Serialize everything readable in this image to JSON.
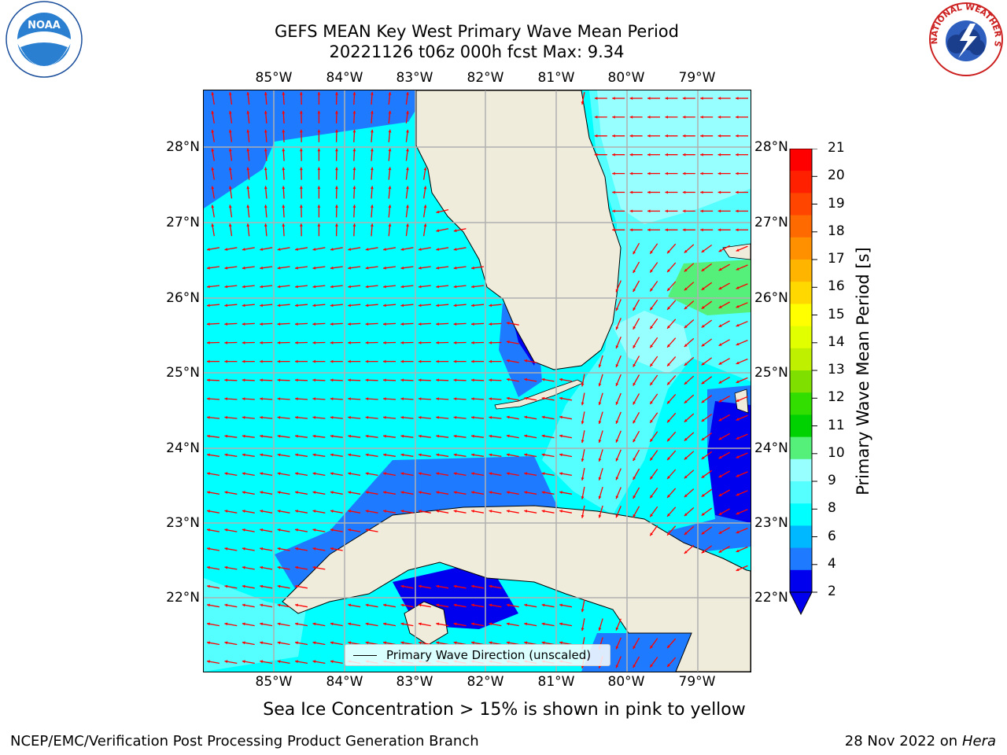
{
  "title": {
    "line1": "GEFS MEAN Key West Primary Wave Mean Period",
    "line2": "20221126 t06z 000h fcst   Max: 9.34"
  },
  "map": {
    "lon_labels": [
      "85°W",
      "84°W",
      "83°W",
      "82°W",
      "81°W",
      "80°W",
      "79°W"
    ],
    "lat_labels": [
      "28°N",
      "27°N",
      "26°N",
      "25°N",
      "24°N",
      "23°N",
      "22°N"
    ],
    "land_color": "#efecdc",
    "arrow_color": "#ff0000",
    "grid": true
  },
  "colorbar": {
    "label": "Primary Wave Mean Period [s]",
    "ticks": [
      "21",
      "20",
      "19",
      "18",
      "17",
      "16",
      "15",
      "14",
      "13",
      "12",
      "11",
      "10",
      "9",
      "8",
      "6",
      "4",
      "2"
    ],
    "colors": [
      "#ff0000",
      "#ff2000",
      "#ff4500",
      "#ff6a00",
      "#ff9000",
      "#ffb400",
      "#ffd800",
      "#ffff00",
      "#e2ff00",
      "#bff000",
      "#7fe000",
      "#32dd00",
      "#00d100",
      "#55f07a",
      "#97ffff",
      "#55ffff",
      "#00ffff",
      "#00b8ff",
      "#1e7bff",
      "#0000ee"
    ]
  },
  "legend": {
    "label": "Primary Wave Direction (unscaled)"
  },
  "note": "Sea Ice Concentration > 15% is shown in pink to yellow",
  "footer": {
    "left": "NCEP/EMC/Verification Post Processing Product Generation Branch",
    "date": "28 Nov 2022 on",
    "host": "Hera"
  },
  "logos": {
    "noaa_text": "NOAA",
    "nws_text": "NATIONAL WEATHER SERVICE"
  }
}
